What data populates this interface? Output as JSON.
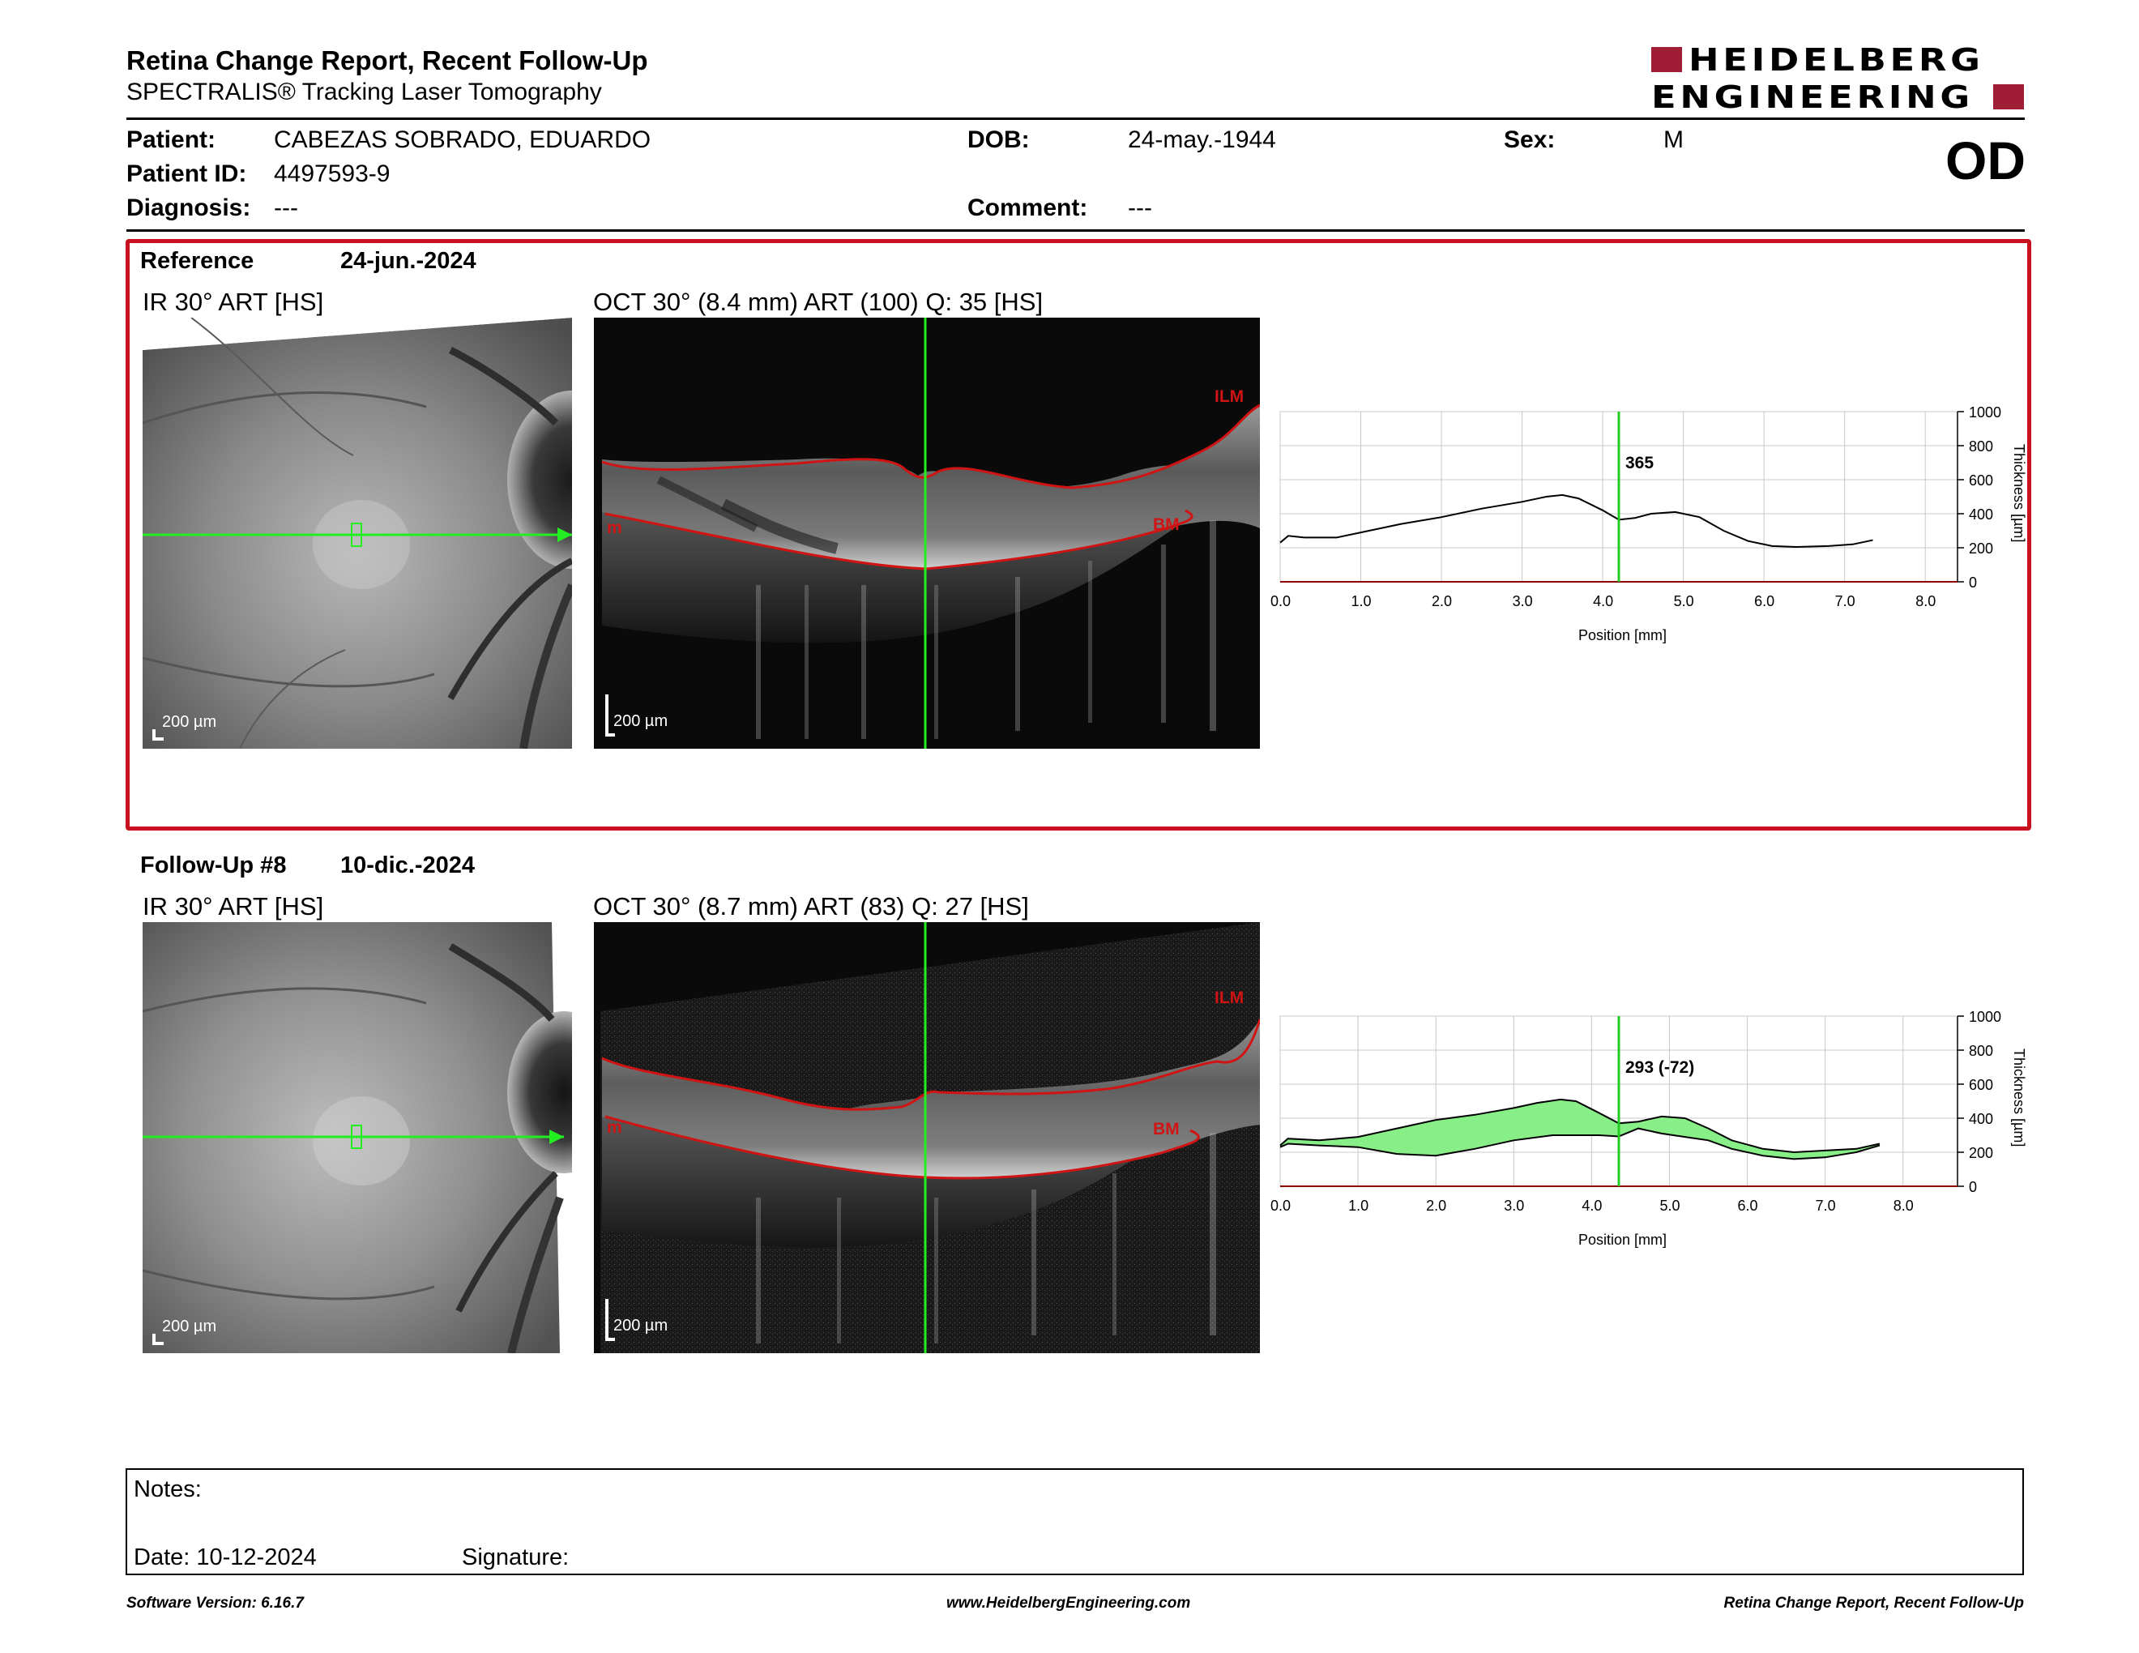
{
  "header": {
    "title": "Retina Change Report, Recent Follow-Up",
    "subtitle": "SPECTRALIS® Tracking Laser Tomography",
    "logo_line1": "HEIDELBERG",
    "logo_line2": "ENGINEERING",
    "eye": "OD"
  },
  "patient": {
    "name_label": "Patient:",
    "name": "CABEZAS SOBRADO, EDUARDO",
    "id_label": "Patient ID:",
    "id": "4497593-9",
    "diagnosis_label": "Diagnosis:",
    "diagnosis": "---",
    "dob_label": "DOB:",
    "dob": "24-may.-1944",
    "comment_label": "Comment:",
    "comment": "---",
    "sex_label": "Sex:",
    "sex": "M"
  },
  "reference": {
    "label": "Reference",
    "date": "24-jun.-2024",
    "ir_caption": "IR 30° ART [HS]",
    "oct_caption": "OCT 30° (8.4 mm) ART (100) Q: 35 [HS]",
    "scale": "200 µm",
    "layer_top": "ILM",
    "layer_bottom": "BM",
    "layer_bottom_left": "m"
  },
  "followup": {
    "label": "Follow-Up #8",
    "date": "10-dic.-2024",
    "ir_caption": "IR 30° ART [HS]",
    "oct_caption": "OCT 30° (8.7 mm) ART (83) Q: 27 [HS]",
    "scale": "200 µm",
    "layer_top": "ILM",
    "layer_bottom": "BM",
    "layer_bottom_left": "m"
  },
  "chart_data": [
    {
      "type": "line",
      "xlabel": "Position [mm]",
      "ylabel": "Thickness [µm]",
      "xlim": [
        0,
        8.4
      ],
      "ylim": [
        0,
        1000
      ],
      "x_ticks": [
        "0.0",
        "1.0",
        "2.0",
        "3.0",
        "4.0",
        "5.0",
        "6.0",
        "7.0",
        "8.0"
      ],
      "y_ticks": [
        "0",
        "200",
        "400",
        "600",
        "800",
        "1000"
      ],
      "grid": true,
      "cursor_x": 4.2,
      "cursor_label": "365",
      "series": [
        {
          "x": [
            0.0,
            0.1,
            0.3,
            0.7,
            1.0,
            1.5,
            2.0,
            2.5,
            3.0,
            3.3,
            3.5,
            3.7,
            4.0,
            4.2,
            4.4,
            4.6,
            4.9,
            5.2,
            5.5,
            5.8,
            6.1,
            6.4,
            6.8,
            7.1,
            7.35
          ],
          "y": [
            230,
            270,
            260,
            260,
            290,
            340,
            380,
            430,
            470,
            500,
            510,
            490,
            420,
            365,
            375,
            400,
            410,
            380,
            300,
            240,
            210,
            205,
            210,
            220,
            245
          ]
        }
      ]
    },
    {
      "type": "area",
      "xlabel": "Position [mm]",
      "ylabel": "Thickness [µm]",
      "xlim": [
        0,
        8.7
      ],
      "ylim": [
        0,
        1000
      ],
      "x_ticks": [
        "0.0",
        "1.0",
        "2.0",
        "3.0",
        "4.0",
        "5.0",
        "6.0",
        "7.0",
        "8.0"
      ],
      "y_ticks": [
        "0",
        "200",
        "400",
        "600",
        "800",
        "1000"
      ],
      "grid": true,
      "cursor_x": 4.35,
      "cursor_label": "293 (-72)",
      "fill_color": "#88ee88",
      "series": [
        {
          "x": [
            0.0,
            0.1,
            0.5,
            1.0,
            1.5,
            2.0,
            2.5,
            3.0,
            3.5,
            3.8,
            4.1,
            4.35,
            4.6,
            4.9,
            5.2,
            5.5,
            5.8,
            6.2,
            6.6,
            7.0,
            7.4,
            7.7
          ],
          "y": [
            230,
            250,
            240,
            230,
            190,
            180,
            220,
            270,
            300,
            300,
            300,
            293,
            340,
            310,
            290,
            270,
            220,
            180,
            160,
            170,
            200,
            240
          ]
        },
        {
          "x": [
            0.0,
            0.1,
            0.5,
            1.0,
            1.5,
            2.0,
            2.5,
            3.0,
            3.3,
            3.6,
            3.8,
            4.1,
            4.35,
            4.6,
            4.9,
            5.2,
            5.5,
            5.8,
            6.2,
            6.6,
            7.0,
            7.4,
            7.7
          ],
          "y": [
            240,
            280,
            270,
            290,
            340,
            390,
            420,
            460,
            490,
            510,
            500,
            430,
            370,
            380,
            410,
            400,
            340,
            270,
            220,
            200,
            210,
            220,
            250
          ]
        }
      ]
    }
  ],
  "notes": {
    "notes_label": "Notes:",
    "date_label": "Date: 10-12-2024",
    "signature_label": "Signature:"
  },
  "footer": {
    "version": "Software Version: 6.16.7",
    "website": "www.HeidelbergEngineering.com",
    "report": "Retina Change Report, Recent Follow-Up"
  }
}
